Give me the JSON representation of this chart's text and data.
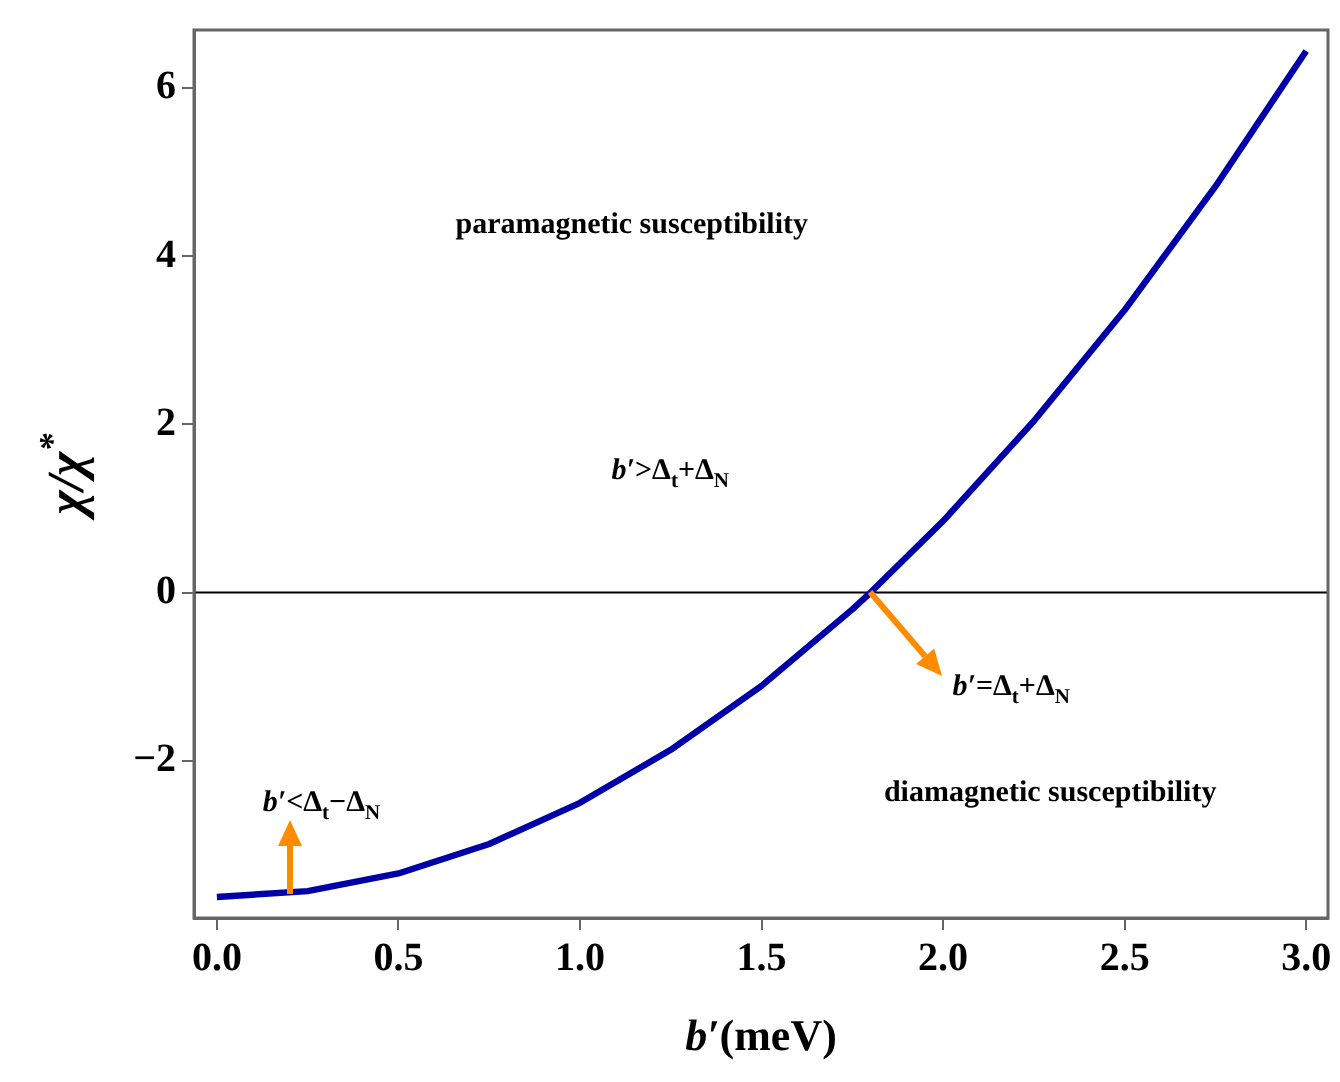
{
  "chart_data": {
    "type": "line",
    "xlabel": "b′(meV)",
    "ylabel": "χ/χ$^{*}$",
    "x": [
      0,
      0.25,
      0.5,
      0.75,
      1.0,
      1.25,
      1.5,
      1.75,
      1.8,
      2.0,
      2.25,
      2.5,
      2.75,
      3.0
    ],
    "series": [
      {
        "color": "#0000a8",
        "values": [
          -3.62,
          -3.55,
          -3.34,
          -2.99,
          -2.5,
          -1.87,
          -1.11,
          -0.2,
          0,
          0.85,
          2.04,
          3.36,
          4.83,
          6.44
        ]
      }
    ],
    "xlim": [
      -0.063,
      3.06
    ],
    "xticks": [
      {
        "value": 0,
        "label": "0.0"
      },
      {
        "value": 0.5,
        "label": "0.5"
      },
      {
        "value": 1,
        "label": "1.0"
      },
      {
        "value": 1.5,
        "label": "1.5"
      },
      {
        "value": 2,
        "label": "2.0"
      },
      {
        "value": 2.5,
        "label": "2.5"
      },
      {
        "value": 3,
        "label": "3.0"
      }
    ],
    "ylim": [
      -3.87,
      6.69
    ],
    "yticks": [
      {
        "value": -2,
        "label": "−2"
      },
      0,
      2,
      4,
      6
    ],
    "grid": false,
    "legend": false,
    "marker": "none",
    "line_style": "solid",
    "ref_lines": [
      {
        "axis": "y",
        "value": 0,
        "color": "#000000"
      }
    ],
    "annotations": [
      "paramagnetic susceptibility",
      "b′>Δ$_{t}$+Δ$_{N}$",
      "diamagnetic susceptibility",
      {
        "text": "b′=Δ$_{t}$+Δ$_{N}$",
        "x": 1.8,
        "y": 0
      },
      {
        "text": "b′<Δ$_{t}$−Δ$_{N}$",
        "x": 0.2,
        "y": -3.58
      }
    ]
  }
}
